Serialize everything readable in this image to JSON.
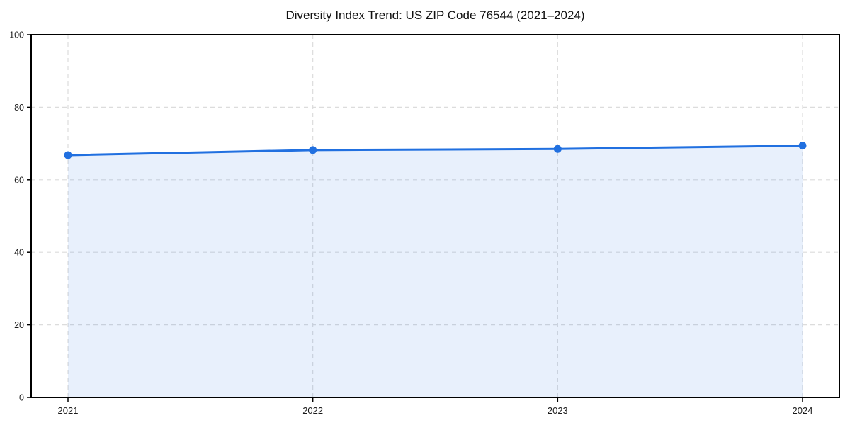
{
  "chart_data": {
    "type": "area",
    "title": "Diversity Index Trend: US ZIP Code 76544 (2021–2024)",
    "x": [
      "2021",
      "2022",
      "2023",
      "2024"
    ],
    "series": [
      {
        "name": "Diversity Index",
        "values": [
          66.8,
          68.2,
          68.5,
          69.4
        ]
      }
    ],
    "xlabel": "",
    "ylabel": "",
    "ylim": [
      0,
      100
    ],
    "yticks": [
      0,
      20,
      40,
      60,
      80,
      100
    ],
    "grid": true,
    "grid_style": "dashed",
    "legend_position": "none",
    "marker": "circle",
    "colors": {
      "line": "#2170e0",
      "marker": "#2170e0",
      "fill": "rgba(33, 112, 224, 0.10)",
      "grid": "#dcdcdc",
      "axis": "#000000",
      "tick_text": "#1a1a1a",
      "background": "#ffffff"
    }
  }
}
